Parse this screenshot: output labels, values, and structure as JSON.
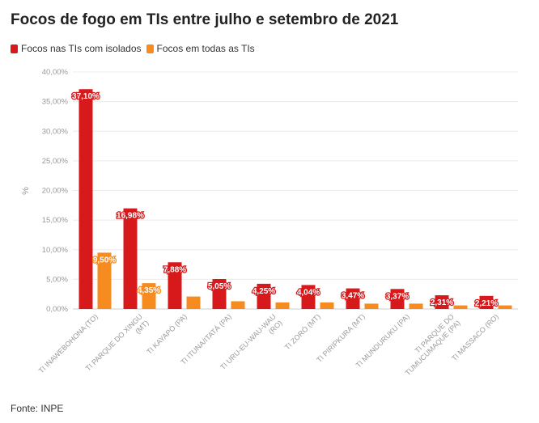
{
  "title": "Focos de fogo em TIs entre julho e setembro de 2021",
  "source": "Fonte: INPE",
  "chart_data": {
    "type": "bar",
    "ylabel": "%",
    "ylim": [
      0,
      40
    ],
    "yticks": [
      "0,00%",
      "5,00%",
      "10,00%",
      "15,00%",
      "20,00%",
      "25,00%",
      "30,00%",
      "35,00%",
      "40,00%"
    ],
    "grid": true,
    "legend_position": "top-left",
    "categories": [
      [
        "TI INAWEBOHONA (TO)"
      ],
      [
        "TI PARQUE DO XINGU",
        "(MT)"
      ],
      [
        "TI KAYAPÓ (PA)"
      ],
      [
        "TI ITUNA/ITATÁ (PA)"
      ],
      [
        "TI URU-EU-WAU-WAU",
        "(RO)"
      ],
      [
        "TI ZORÓ (MT)"
      ],
      [
        "TI PIRIPKURA (MT)"
      ],
      [
        "TI MUNDURUKU (PA)"
      ],
      [
        "TI PARQUE DO",
        "TUMUCUMAQUE (PA)"
      ],
      [
        "TI MASSACO (RO)"
      ]
    ],
    "series": [
      {
        "name": "Focos nas TIs com isolados",
        "color": "#d7191c",
        "values": [
          37.1,
          16.98,
          7.88,
          5.05,
          4.25,
          4.04,
          3.47,
          3.37,
          2.31,
          2.21
        ],
        "labels": [
          "37,10%",
          "16,98%",
          "7,88%",
          "5,05%",
          "4,25%",
          "4,04%",
          "3,47%",
          "3,37%",
          "2,31%",
          "2,21%"
        ]
      },
      {
        "name": "Focos em todas as TIs",
        "color": "#f68b1f",
        "values": [
          9.5,
          4.35,
          2.1,
          1.3,
          1.1,
          1.1,
          0.9,
          0.9,
          0.6,
          0.6
        ],
        "labels": [
          "9,50%",
          "4,35%",
          "",
          "",
          "",
          "",
          "",
          "",
          "",
          ""
        ]
      }
    ]
  }
}
